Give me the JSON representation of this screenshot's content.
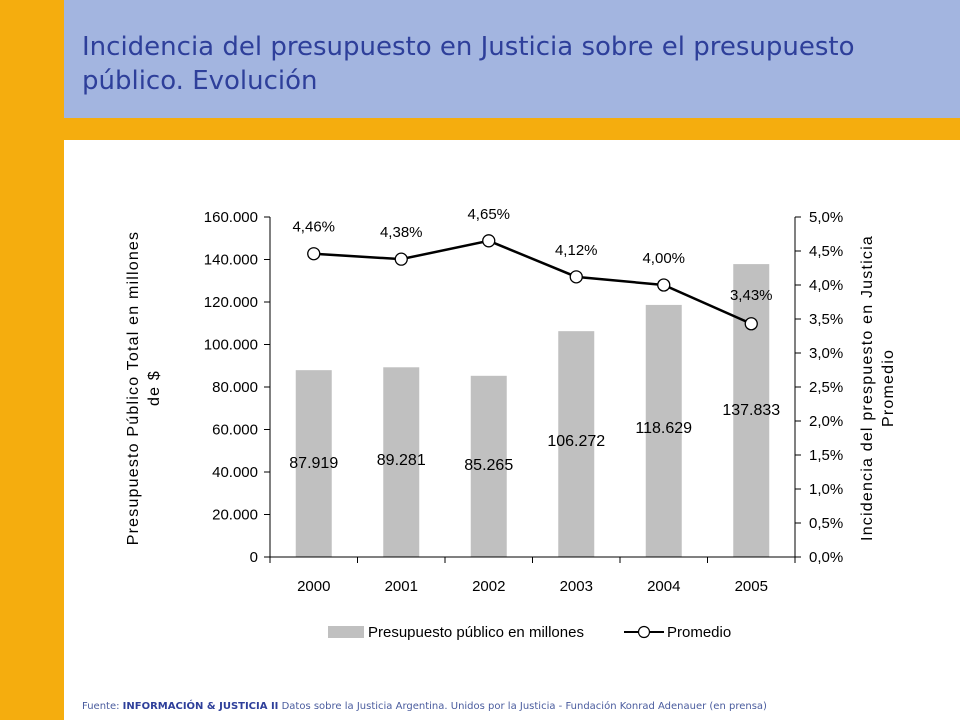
{
  "title": "Incidencia del presupuesto en Justicia sobre el presupuesto público. Evolución",
  "source": {
    "prefix": "Fuente:",
    "bold": "INFORMACIÓN & JUSTICIA II",
    "rest": "Datos sobre la Justicia Argentina.  Unidos por la Justicia - Fundación Konrad Adenauer (en prensa)"
  },
  "colors": {
    "sidebar": "#f5ad0e",
    "header": "#a3b5e0",
    "title": "#2e3f9a",
    "bars": "#c0c0c0",
    "line": "#000000"
  },
  "chart_data": {
    "type": "bar+line",
    "categories": [
      "2000",
      "2001",
      "2002",
      "2003",
      "2004",
      "2005"
    ],
    "series": [
      {
        "name": "Presupuesto público en millones",
        "type": "bar",
        "axis": "left",
        "values": [
          87919,
          89281,
          85265,
          106272,
          118629,
          137833
        ],
        "labels": [
          "87.919",
          "89.281",
          "85.265",
          "106.272",
          "118.629",
          "137.833"
        ]
      },
      {
        "name": "Promedio",
        "type": "line",
        "axis": "right",
        "values": [
          4.46,
          4.38,
          4.65,
          4.12,
          4.0,
          3.43
        ],
        "labels": [
          "4,46%",
          "4,38%",
          "4,65%",
          "4,12%",
          "4,00%",
          "3,43%"
        ]
      }
    ],
    "ylabel_left": "Presupuesto Público Total en millones de $",
    "ylabel_right": "Incidencia del prespuesto en Justicia Promedio",
    "ylim_left": [
      0,
      160000
    ],
    "ylim_right": [
      0,
      5.0
    ],
    "yticks_left": [
      "0",
      "20.000",
      "40.000",
      "60.000",
      "80.000",
      "100.000",
      "120.000",
      "140.000",
      "160.000"
    ],
    "yticks_right": [
      "0,0%",
      "0,5%",
      "1,0%",
      "1,5%",
      "2,0%",
      "2,5%",
      "3,0%",
      "3,5%",
      "4,0%",
      "4,5%",
      "5,0%"
    ],
    "legend_position": "bottom",
    "grid": false
  }
}
